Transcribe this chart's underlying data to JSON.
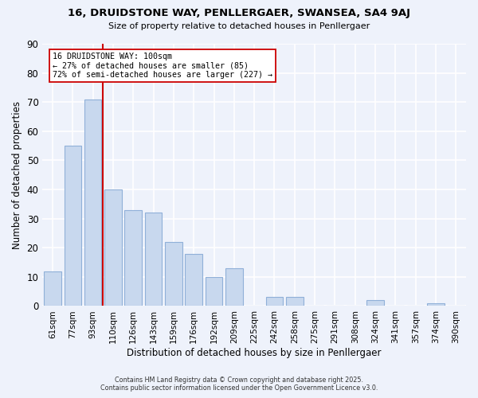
{
  "title": "16, DRUIDSTONE WAY, PENLLERGAER, SWANSEA, SA4 9AJ",
  "subtitle": "Size of property relative to detached houses in Penllergaer",
  "xlabel": "Distribution of detached houses by size in Penllergaer",
  "ylabel": "Number of detached properties",
  "bar_color": "#c8d8ee",
  "bar_edge_color": "#90b0d8",
  "categories": [
    "61sqm",
    "77sqm",
    "93sqm",
    "110sqm",
    "126sqm",
    "143sqm",
    "159sqm",
    "176sqm",
    "192sqm",
    "209sqm",
    "225sqm",
    "242sqm",
    "258sqm",
    "275sqm",
    "291sqm",
    "308sqm",
    "324sqm",
    "341sqm",
    "357sqm",
    "374sqm",
    "390sqm"
  ],
  "values": [
    12,
    55,
    71,
    40,
    33,
    32,
    22,
    18,
    10,
    13,
    0,
    3,
    3,
    0,
    0,
    0,
    2,
    0,
    0,
    1,
    0
  ],
  "ylim": [
    0,
    90
  ],
  "yticks": [
    0,
    10,
    20,
    30,
    40,
    50,
    60,
    70,
    80,
    90
  ],
  "vline_index": 2.5,
  "vline_color": "#cc0000",
  "annotation_text": "16 DRUIDSTONE WAY: 100sqm\n← 27% of detached houses are smaller (85)\n72% of semi-detached houses are larger (227) →",
  "annotation_box_color": "#ffffff",
  "annotation_box_edge_color": "#cc0000",
  "background_color": "#eef2fb",
  "grid_color": "#ffffff",
  "footer_line1": "Contains HM Land Registry data © Crown copyright and database right 2025.",
  "footer_line2": "Contains public sector information licensed under the Open Government Licence v3.0."
}
